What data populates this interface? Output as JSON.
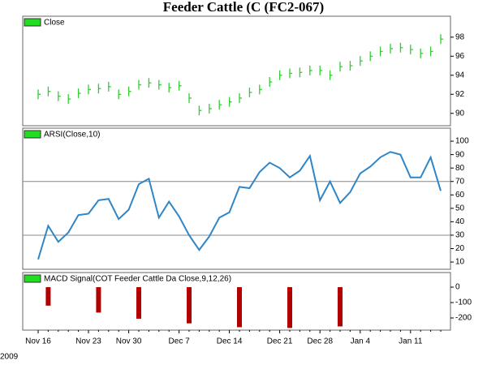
{
  "title": "Feeder Cattle (C (FC2-067)",
  "year_label": "2009",
  "chart_data": [
    {
      "type": "price",
      "legend": "Close",
      "color": "#33cc33",
      "values": [
        92.0,
        92.3,
        91.8,
        91.5,
        92.1,
        92.5,
        92.6,
        92.8,
        92.0,
        92.3,
        93.0,
        93.2,
        93.0,
        92.7,
        92.9,
        91.6,
        90.3,
        90.5,
        90.9,
        91.2,
        91.6,
        92.2,
        92.5,
        93.3,
        94.0,
        94.2,
        94.3,
        94.5,
        94.5,
        94.0,
        94.9,
        95.0,
        95.5,
        96.0,
        96.5,
        96.8,
        96.9,
        96.7,
        96.3,
        96.5,
        97.8
      ],
      "ylim": [
        88.7,
        100.2
      ],
      "yticks": [
        90,
        92,
        94,
        96,
        98
      ]
    },
    {
      "type": "line",
      "legend": "ARSI(Close,10)",
      "color": "#2e86c8",
      "values": [
        12,
        37,
        25,
        32,
        45,
        46,
        56,
        57,
        42,
        49,
        68,
        72,
        43,
        55,
        44,
        30,
        19,
        29,
        43,
        47,
        66,
        65,
        77,
        84,
        80,
        73,
        78,
        89,
        56,
        70,
        54,
        62,
        76,
        81,
        88,
        92,
        90,
        73,
        73,
        88,
        63
      ],
      "levels": [
        30,
        70
      ],
      "ylim": [
        4.6,
        109.7
      ],
      "yticks": [
        10,
        20,
        30,
        40,
        50,
        60,
        70,
        80,
        90,
        100
      ]
    },
    {
      "type": "bar",
      "legend": "MACD Signal(COT Feeder Cattle Da Close,9,12,26)",
      "color": "#b00000",
      "categories": [
        "Nov 16",
        null,
        null,
        null,
        null,
        "Nov 23",
        null,
        null,
        null,
        "Nov 30",
        null,
        null,
        null,
        null,
        "Dec 7",
        null,
        null,
        null,
        null,
        "Dec 14",
        null,
        null,
        null,
        null,
        "Dec 21",
        null,
        null,
        null,
        "Dec 28",
        null,
        null,
        null,
        "Jan 4",
        null,
        null,
        null,
        null,
        "Jan 11",
        null,
        null,
        null
      ],
      "values": [
        null,
        -120,
        null,
        null,
        null,
        null,
        -165,
        null,
        null,
        null,
        -205,
        null,
        null,
        null,
        null,
        -235,
        null,
        null,
        null,
        null,
        -260,
        null,
        null,
        null,
        null,
        -265,
        null,
        null,
        null,
        null,
        -255,
        null,
        null,
        null,
        null,
        null,
        null,
        null,
        null,
        null,
        null
      ],
      "ylim": [
        -279,
        95
      ],
      "yticks": [
        0,
        -100,
        -200
      ]
    }
  ]
}
